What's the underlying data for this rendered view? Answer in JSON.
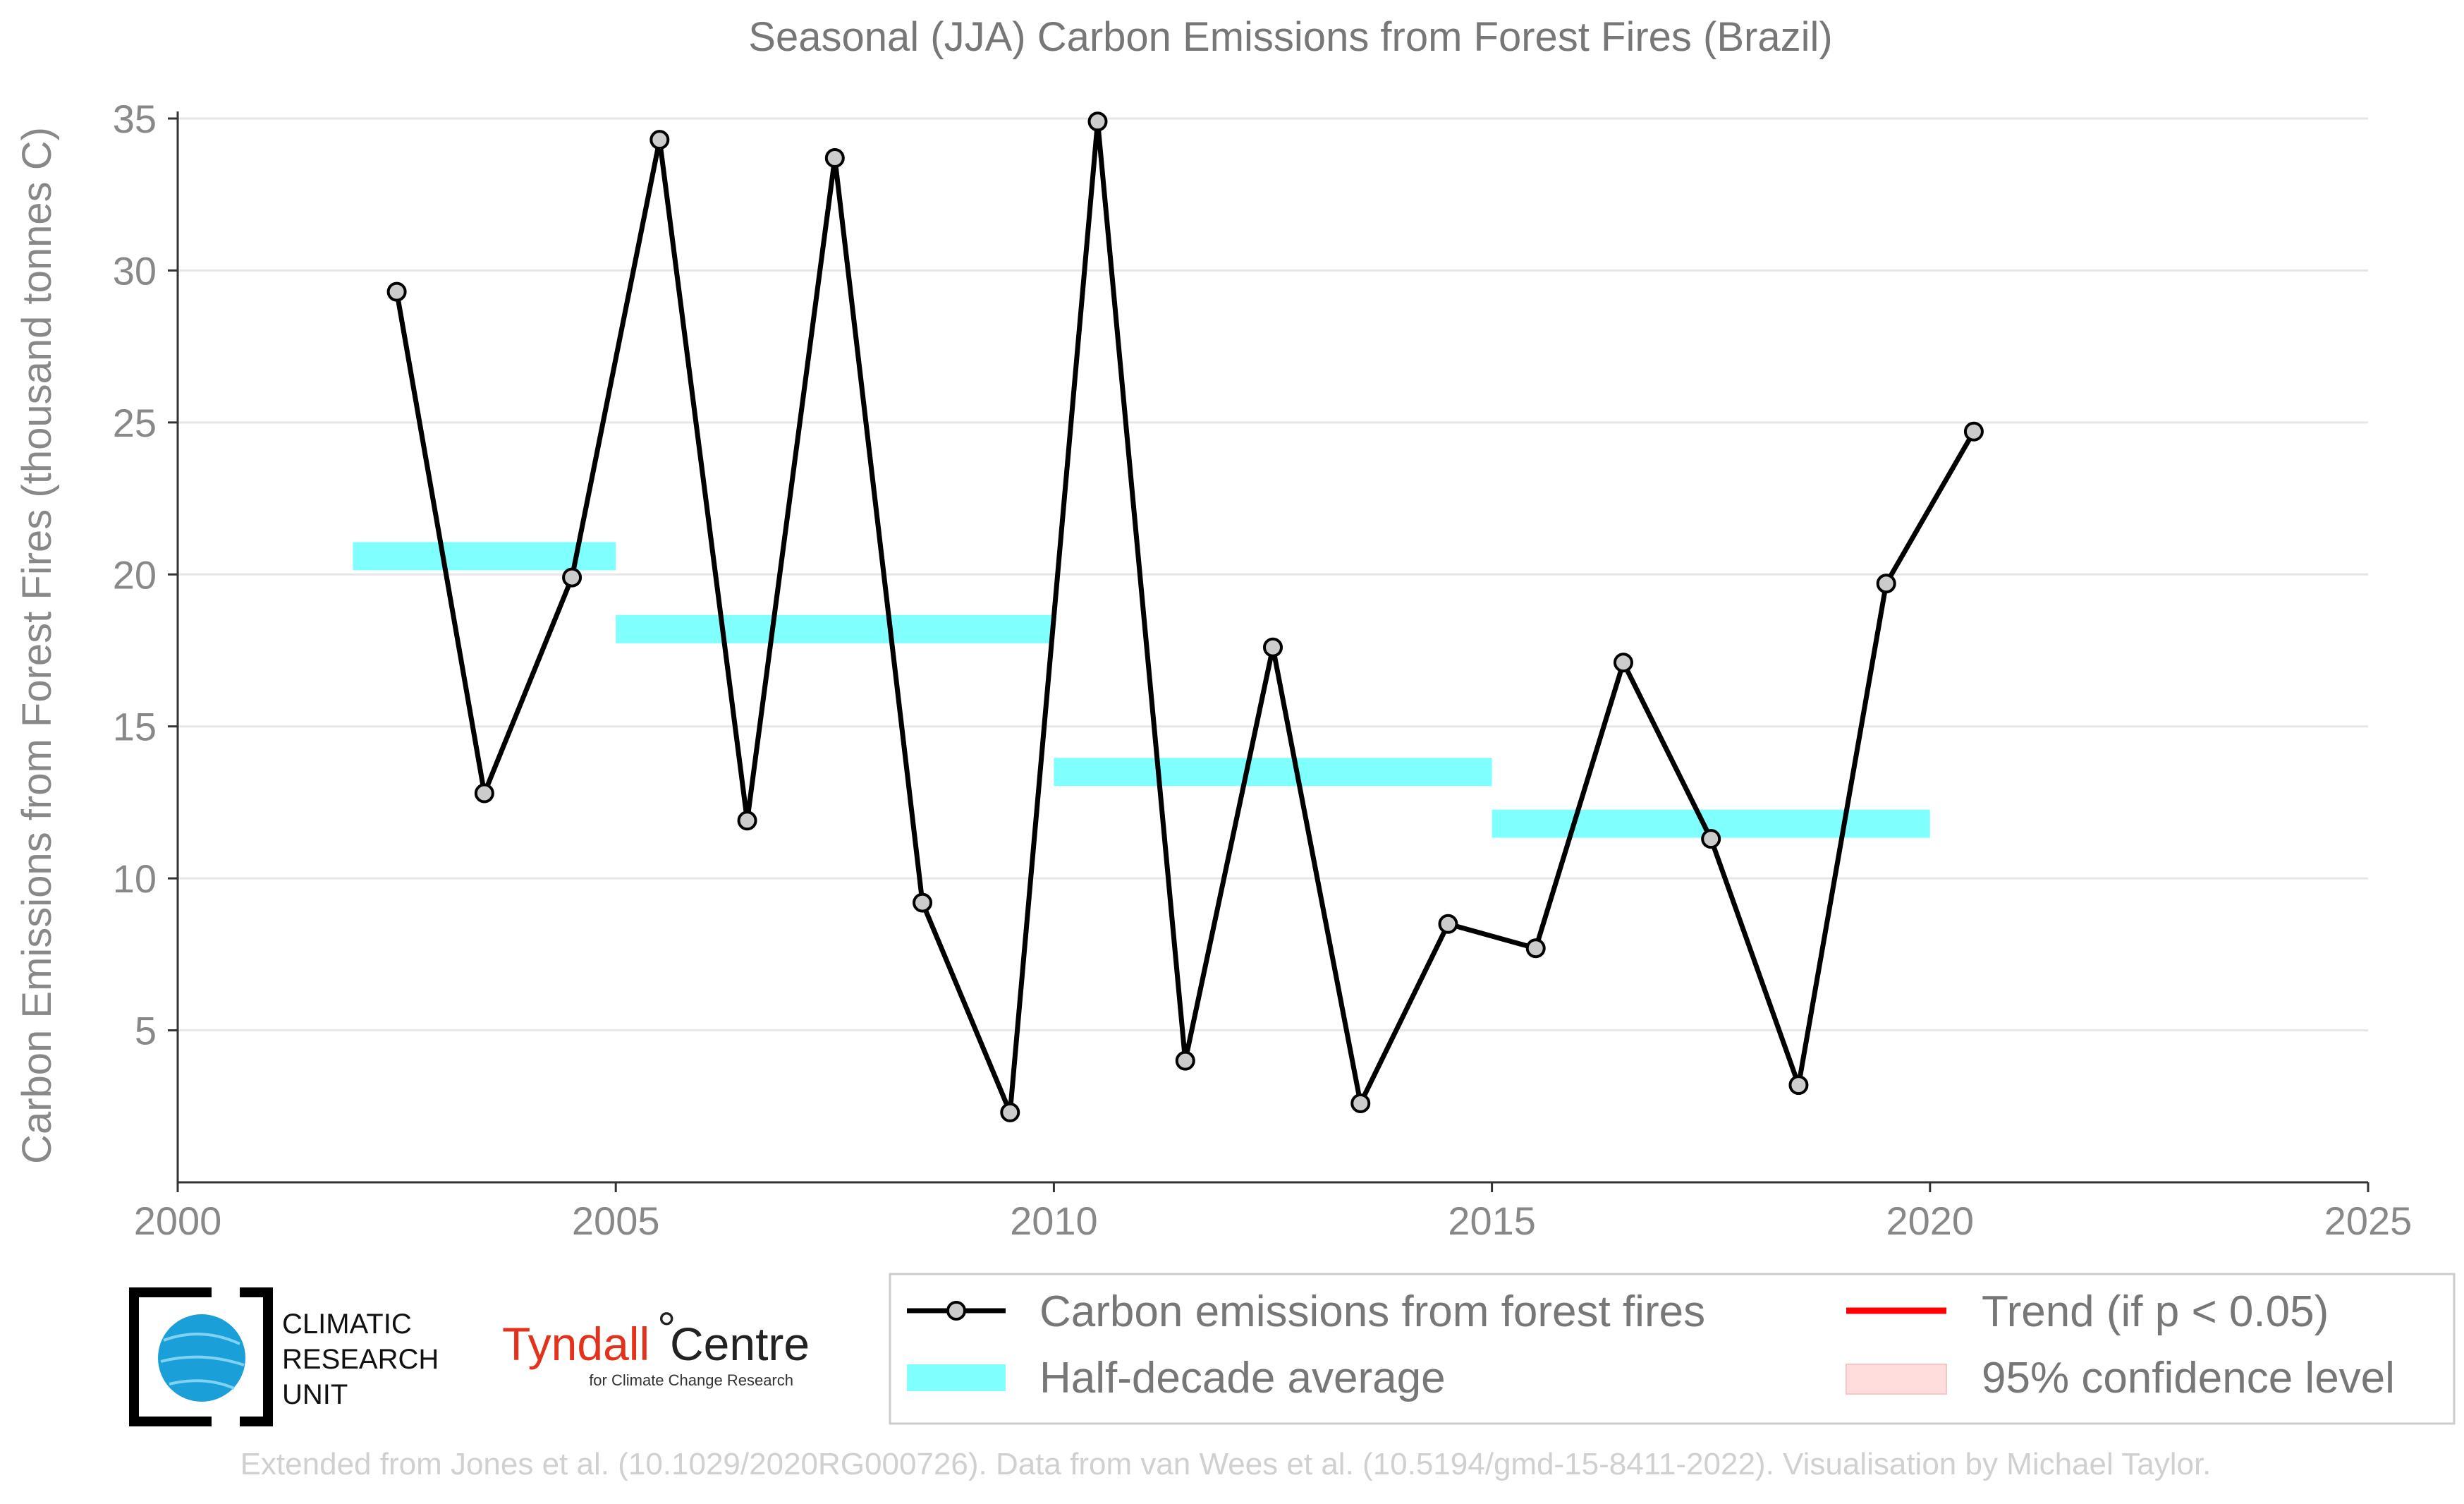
{
  "chart_data": {
    "type": "line",
    "title": "Seasonal (JJA) Carbon Emissions from Forest Fires (Brazil)",
    "xlabel": "",
    "ylabel": "Carbon Emissions from Forest Fires (thousand tonnes C)",
    "xlim": [
      2000,
      2025
    ],
    "ylim": [
      0,
      35
    ],
    "xticks": [
      2000,
      2005,
      2010,
      2015,
      2020,
      2025
    ],
    "yticks": [
      5,
      10,
      15,
      20,
      25,
      30,
      35
    ],
    "grid": "horizontal",
    "series": [
      {
        "name": "Carbon emissions from forest fires",
        "color": "#000000",
        "marker_fill": "#cccccc",
        "x": [
          2002.5,
          2003.5,
          2004.5,
          2005.5,
          2006.5,
          2007.5,
          2008.5,
          2009.5,
          2010.5,
          2011.5,
          2012.5,
          2013.5,
          2014.5,
          2015.5,
          2016.5,
          2017.5,
          2018.5,
          2019.5,
          2020.5
        ],
        "y": [
          29.3,
          12.8,
          19.9,
          34.3,
          11.9,
          33.7,
          9.2,
          2.3,
          34.9,
          4.0,
          17.6,
          2.6,
          8.5,
          7.7,
          17.1,
          11.3,
          3.2,
          19.7,
          24.7
        ]
      },
      {
        "name": "Half-decade average",
        "color": "#80ffff",
        "segments": [
          {
            "x0": 2002,
            "x1": 2005,
            "y": 20.6
          },
          {
            "x0": 2005,
            "x1": 2010,
            "y": 18.2
          },
          {
            "x0": 2010,
            "x1": 2015,
            "y": 13.5
          },
          {
            "x0": 2015,
            "x1": 2020,
            "y": 11.8
          }
        ]
      }
    ],
    "legend": {
      "placement": "bottom",
      "entries": [
        {
          "label": "Carbon emissions from forest fires",
          "kind": "line-marker",
          "color": "#000000"
        },
        {
          "label": "Half-decade average",
          "kind": "band",
          "color": "#80ffff"
        },
        {
          "label": "Trend (if p < 0.05)",
          "kind": "line",
          "color": "#ff0000"
        },
        {
          "label": "95% confidence level",
          "kind": "patch",
          "color": "#ffdddd"
        }
      ]
    }
  },
  "logos": {
    "cru": {
      "line1": "CLIMATIC",
      "line2": "RESEARCH",
      "line3": "UNIT",
      "icon": "globe-icon"
    },
    "tyndall": {
      "main": "Tyndall",
      "degree": "°",
      "centre": "Centre",
      "sub": "for Climate Change Research"
    }
  },
  "footer": "Extended from Jones et al. (10.1029/2020RG000726). Data from van Wees et al. (10.5194/gmd-15-8411-2022). Visualisation by Michael Taylor.",
  "colors": {
    "accent_band": "#80ffff",
    "line": "#000000",
    "trend": "#ff0000",
    "ci": "#ffdddd"
  }
}
